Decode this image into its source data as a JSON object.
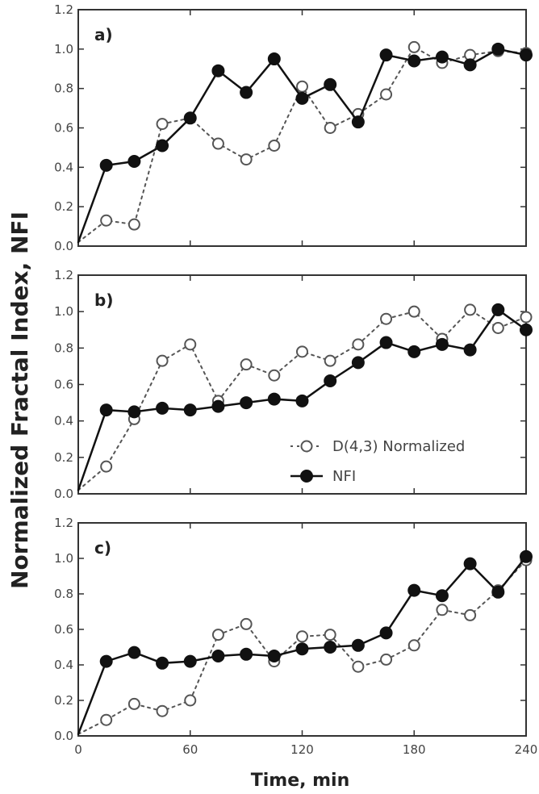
{
  "chart_data": [
    {
      "type": "line",
      "panel_label": "a)",
      "xlim": [
        0,
        240
      ],
      "ylim": [
        0,
        1.2
      ],
      "xticks": [
        "0",
        "60",
        "120",
        "180",
        "240"
      ],
      "yticks": [
        "0.0",
        "0.2",
        "0.4",
        "0.6",
        "0.8",
        "1.0",
        "1.2"
      ],
      "series": [
        {
          "name": "D(4,3) Normalized",
          "style": "dotted-open-circle",
          "x": [
            0,
            15,
            30,
            45,
            60,
            75,
            90,
            105,
            120,
            135,
            150,
            165,
            180,
            195,
            210,
            225,
            240
          ],
          "y": [
            0.02,
            0.13,
            0.11,
            0.62,
            0.65,
            0.52,
            0.44,
            0.51,
            0.81,
            0.6,
            0.67,
            0.77,
            1.01,
            0.93,
            0.97,
            0.99,
            0.98
          ]
        },
        {
          "name": "NFI",
          "style": "solid-filled-circle",
          "x": [
            0,
            15,
            30,
            45,
            60,
            75,
            90,
            105,
            120,
            135,
            150,
            165,
            180,
            195,
            210,
            225,
            240
          ],
          "y": [
            0.02,
            0.41,
            0.43,
            0.51,
            0.65,
            0.89,
            0.78,
            0.95,
            0.75,
            0.82,
            0.63,
            0.97,
            0.94,
            0.96,
            0.92,
            1.0,
            0.97
          ]
        }
      ]
    },
    {
      "type": "line",
      "panel_label": "b)",
      "xlim": [
        0,
        240
      ],
      "ylim": [
        0,
        1.2
      ],
      "xticks": [
        "0",
        "60",
        "120",
        "180",
        "240"
      ],
      "yticks": [
        "0.0",
        "0.2",
        "0.4",
        "0.6",
        "0.8",
        "1.0",
        "1.2"
      ],
      "legend": "bottom-right",
      "series": [
        {
          "name": "D(4,3) Normalized",
          "style": "dotted-open-circle",
          "x": [
            0,
            15,
            30,
            45,
            60,
            75,
            90,
            105,
            120,
            135,
            150,
            165,
            180,
            195,
            210,
            225,
            240
          ],
          "y": [
            0.02,
            0.15,
            0.41,
            0.73,
            0.82,
            0.51,
            0.71,
            0.65,
            0.78,
            0.73,
            0.82,
            0.96,
            1.0,
            0.85,
            1.01,
            0.91,
            0.97
          ]
        },
        {
          "name": "NFI",
          "style": "solid-filled-circle",
          "x": [
            0,
            15,
            30,
            45,
            60,
            75,
            90,
            105,
            120,
            135,
            150,
            165,
            180,
            195,
            210,
            225,
            240
          ],
          "y": [
            0.02,
            0.46,
            0.45,
            0.47,
            0.46,
            0.48,
            0.5,
            0.52,
            0.51,
            0.62,
            0.72,
            0.83,
            0.78,
            0.82,
            0.79,
            1.01,
            0.9
          ]
        }
      ]
    },
    {
      "type": "line",
      "panel_label": "c)",
      "xlim": [
        0,
        240
      ],
      "ylim": [
        0,
        1.2
      ],
      "xticks": [
        "0",
        "60",
        "120",
        "180",
        "240"
      ],
      "yticks": [
        "0.0",
        "0.2",
        "0.4",
        "0.6",
        "0.8",
        "1.0",
        "1.2"
      ],
      "series": [
        {
          "name": "D(4,3) Normalized",
          "style": "dotted-open-circle",
          "x": [
            0,
            15,
            30,
            45,
            60,
            75,
            90,
            105,
            120,
            135,
            150,
            165,
            180,
            195,
            210,
            225,
            240
          ],
          "y": [
            0.01,
            0.09,
            0.18,
            0.14,
            0.2,
            0.57,
            0.63,
            0.42,
            0.56,
            0.57,
            0.39,
            0.43,
            0.51,
            0.71,
            0.68,
            0.82,
            0.99
          ]
        },
        {
          "name": "NFI",
          "style": "solid-filled-circle",
          "x": [
            0,
            15,
            30,
            45,
            60,
            75,
            90,
            105,
            120,
            135,
            150,
            165,
            180,
            195,
            210,
            225,
            240
          ],
          "y": [
            0.01,
            0.42,
            0.47,
            0.41,
            0.42,
            0.45,
            0.46,
            0.45,
            0.49,
            0.5,
            0.51,
            0.58,
            0.82,
            0.79,
            0.97,
            0.81,
            1.01
          ]
        }
      ]
    }
  ],
  "ylabel": "Normalized Fractal Index, NFI",
  "xlabel": "Time, min",
  "legend": {
    "entries": [
      "D(4,3) Normalized",
      "NFI"
    ]
  },
  "colors": {
    "axis": "#333333",
    "series_open": "#555555",
    "series_filled": "#111111"
  }
}
